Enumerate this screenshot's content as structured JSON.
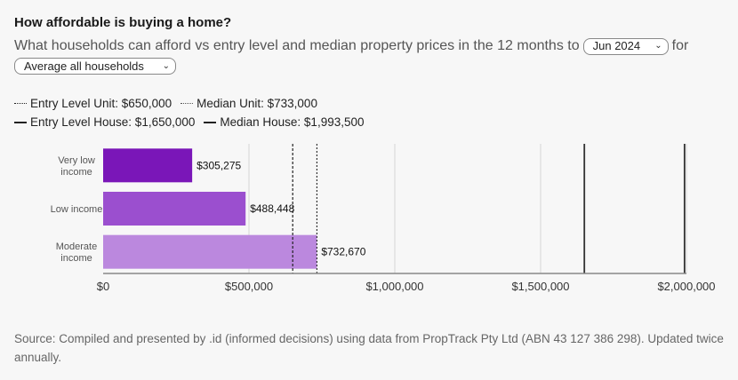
{
  "header": {
    "title": "How affordable is buying a home?",
    "subtitle_prefix": "What households can afford vs entry level and median property prices in the 12 months to",
    "period_select": "Jun 2024",
    "subtitle_suffix": "for",
    "household_select": "Average all households"
  },
  "legend": {
    "items": [
      {
        "label": "Entry Level Unit: $650,000",
        "style": "dotted"
      },
      {
        "label": "Median Unit: $733,000",
        "style": "fine-dotted"
      },
      {
        "label": "Entry Level House: $1,650,000",
        "style": "solid"
      },
      {
        "label": "Median House: $1,993,500",
        "style": "solid"
      }
    ]
  },
  "chart_data": {
    "type": "bar",
    "orientation": "horizontal",
    "categories": [
      "Very low income",
      "Low income",
      "Moderate income"
    ],
    "values": [
      305275,
      488448,
      732670
    ],
    "value_labels": [
      "$305,275",
      "$488,448",
      "$732,670"
    ],
    "colors": [
      "#7a16b8",
      "#9b4fcf",
      "#bb88de"
    ],
    "xlim": [
      0,
      2000000
    ],
    "xticks": [
      0,
      500000,
      1000000,
      1500000,
      2000000
    ],
    "xtick_labels": [
      "$0",
      "$500,000",
      "$1,000,000",
      "$1,500,000",
      "$2,000,000"
    ],
    "reference_lines": [
      {
        "label": "Entry Level Unit",
        "value": 650000,
        "style": "dotted"
      },
      {
        "label": "Median Unit",
        "value": 733000,
        "style": "fine-dotted"
      },
      {
        "label": "Entry Level House",
        "value": 1650000,
        "style": "solid"
      },
      {
        "label": "Median House",
        "value": 1993500,
        "style": "solid"
      }
    ],
    "grid": true
  },
  "footer": {
    "source": "Source: Compiled and presented by .id (informed decisions) using data from PropTrack Pty Ltd (ABN 43 127 386 298). Updated twice annually."
  }
}
